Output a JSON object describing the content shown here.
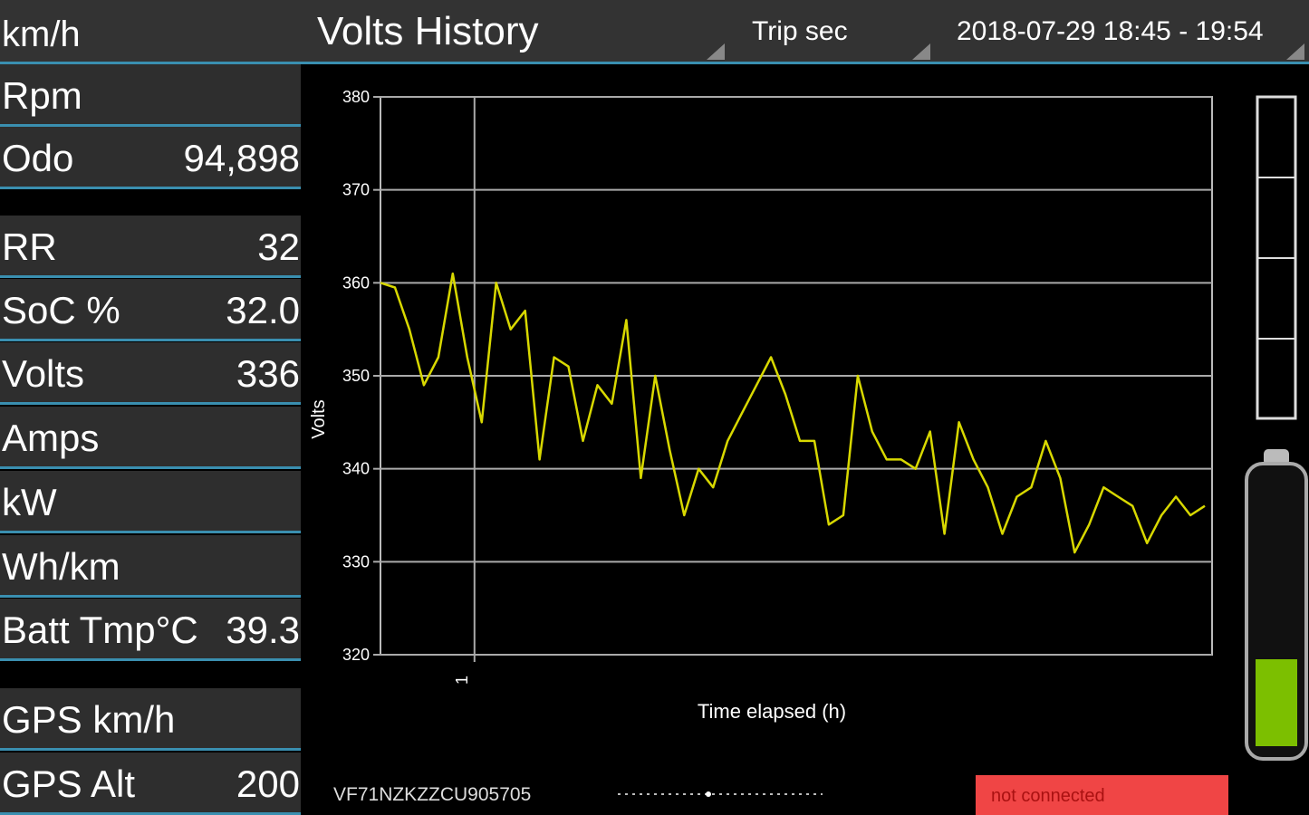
{
  "header": {
    "speed_label": "km/h",
    "title": "Volts History",
    "mode": "Trip sec",
    "date_range": "2018-07-29 18:45 - 19:54"
  },
  "sidebar": {
    "rows": [
      {
        "label": "Rpm"
      },
      {
        "label": "Odo",
        "value": "94,898"
      },
      {
        "label": "RR",
        "value": "32"
      },
      {
        "label": "SoC %",
        "value": "32.0"
      },
      {
        "label": "Volts",
        "value": "336"
      },
      {
        "label": "Amps"
      },
      {
        "label": "kW"
      },
      {
        "label": "Wh/km"
      },
      {
        "label": "Batt Tmp°C",
        "value": "39.3"
      },
      {
        "label": "GPS km/h"
      },
      {
        "label": "GPS Alt",
        "value": "200"
      }
    ]
  },
  "chart_data": {
    "type": "line",
    "y_label": "Volts",
    "x_label": "Time elapsed (h)",
    "color": "#d8d800",
    "ylim": [
      320,
      380
    ],
    "yticks": [
      320,
      330,
      340,
      350,
      360,
      370,
      380
    ],
    "xlim": [
      0.87,
      2.02
    ],
    "xticks": [
      1
    ],
    "grid": true,
    "x": [
      0.87,
      0.89,
      0.91,
      0.93,
      0.95,
      0.97,
      0.99,
      1.01,
      1.03,
      1.05,
      1.07,
      1.09,
      1.11,
      1.13,
      1.15,
      1.17,
      1.19,
      1.21,
      1.23,
      1.25,
      1.27,
      1.29,
      1.31,
      1.33,
      1.35,
      1.37,
      1.39,
      1.41,
      1.43,
      1.45,
      1.47,
      1.49,
      1.51,
      1.53,
      1.55,
      1.57,
      1.59,
      1.61,
      1.63,
      1.65,
      1.67,
      1.69,
      1.71,
      1.73,
      1.75,
      1.77,
      1.79,
      1.81,
      1.83,
      1.85,
      1.87,
      1.89,
      1.91,
      1.93,
      1.95,
      1.97,
      1.99,
      2.01
    ],
    "values": [
      360,
      359.5,
      355,
      349,
      352,
      361,
      352,
      345,
      360,
      355,
      357,
      341,
      352,
      351,
      343,
      349,
      347,
      356,
      339,
      350,
      342,
      335,
      340,
      338,
      343,
      346,
      349,
      352,
      348,
      343,
      343,
      334,
      335,
      350,
      344,
      341,
      341,
      340,
      344,
      333,
      345,
      341,
      338,
      333,
      337,
      338,
      343,
      339,
      331,
      334,
      338,
      337,
      336,
      332,
      335,
      337,
      335,
      336
    ]
  },
  "footer": {
    "vin": "VF71NZKZZCU905705",
    "status": "not connected"
  }
}
